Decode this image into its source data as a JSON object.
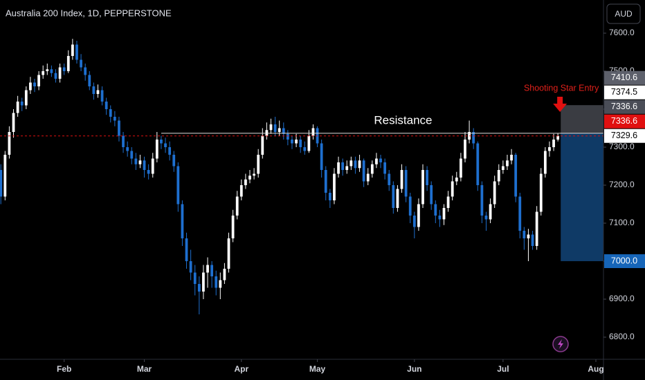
{
  "chart_data": {
    "type": "candlestick",
    "title": "Australia 200 Index, 1D, PEPPERSTONE",
    "currency": "AUD",
    "up_color": "#ffffff",
    "down_color": "#1e6fcf",
    "candles": [
      [
        7240,
        7255,
        7150,
        7170
      ],
      [
        7170,
        7290,
        7160,
        7280
      ],
      [
        7280,
        7355,
        7270,
        7340
      ],
      [
        7340,
        7400,
        7325,
        7390
      ],
      [
        7390,
        7435,
        7380,
        7420
      ],
      [
        7420,
        7430,
        7395,
        7410
      ],
      [
        7410,
        7460,
        7400,
        7450
      ],
      [
        7450,
        7485,
        7440,
        7470
      ],
      [
        7470,
        7480,
        7445,
        7460
      ],
      [
        7460,
        7500,
        7450,
        7490
      ],
      [
        7490,
        7515,
        7480,
        7500
      ],
      [
        7500,
        7520,
        7490,
        7505
      ],
      [
        7505,
        7515,
        7485,
        7495
      ],
      [
        7495,
        7505,
        7470,
        7480
      ],
      [
        7480,
        7520,
        7470,
        7510
      ],
      [
        7510,
        7520,
        7490,
        7500
      ],
      [
        7500,
        7555,
        7495,
        7540
      ],
      [
        7540,
        7585,
        7530,
        7570
      ],
      [
        7570,
        7580,
        7520,
        7530
      ],
      [
        7530,
        7545,
        7500,
        7510
      ],
      [
        7510,
        7520,
        7475,
        7490
      ],
      [
        7490,
        7500,
        7450,
        7460
      ],
      [
        7460,
        7470,
        7425,
        7440
      ],
      [
        7440,
        7465,
        7430,
        7450
      ],
      [
        7450,
        7460,
        7410,
        7420
      ],
      [
        7420,
        7430,
        7385,
        7400
      ],
      [
        7400,
        7410,
        7365,
        7380
      ],
      [
        7380,
        7395,
        7355,
        7370
      ],
      [
        7370,
        7380,
        7315,
        7330
      ],
      [
        7330,
        7340,
        7285,
        7300
      ],
      [
        7300,
        7315,
        7275,
        7290
      ],
      [
        7290,
        7300,
        7255,
        7270
      ],
      [
        7270,
        7285,
        7240,
        7255
      ],
      [
        7255,
        7280,
        7245,
        7265
      ],
      [
        7265,
        7275,
        7220,
        7240
      ],
      [
        7240,
        7255,
        7215,
        7230
      ],
      [
        7230,
        7285,
        7220,
        7270
      ],
      [
        7270,
        7340,
        7260,
        7320
      ],
      [
        7320,
        7330,
        7295,
        7310
      ],
      [
        7310,
        7325,
        7285,
        7300
      ],
      [
        7300,
        7315,
        7265,
        7280
      ],
      [
        7280,
        7290,
        7235,
        7250
      ],
      [
        7250,
        7260,
        7130,
        7150
      ],
      [
        7150,
        7160,
        7040,
        7060
      ],
      [
        7060,
        7075,
        6980,
        7000
      ],
      [
        7000,
        7030,
        6950,
        6970
      ],
      [
        6970,
        6990,
        6910,
        6940
      ],
      [
        6940,
        6960,
        6860,
        6920
      ],
      [
        6920,
        6990,
        6900,
        6970
      ],
      [
        6970,
        7010,
        6930,
        6990
      ],
      [
        6990,
        7000,
        6930,
        6960
      ],
      [
        6960,
        6975,
        6910,
        6930
      ],
      [
        6930,
        6970,
        6900,
        6950
      ],
      [
        6950,
        6995,
        6940,
        6980
      ],
      [
        6980,
        7075,
        6970,
        7060
      ],
      [
        7060,
        7135,
        7050,
        7120
      ],
      [
        7120,
        7185,
        7110,
        7170
      ],
      [
        7170,
        7215,
        7160,
        7200
      ],
      [
        7200,
        7230,
        7190,
        7215
      ],
      [
        7215,
        7240,
        7205,
        7225
      ],
      [
        7225,
        7245,
        7215,
        7230
      ],
      [
        7230,
        7295,
        7220,
        7280
      ],
      [
        7280,
        7350,
        7270,
        7330
      ],
      [
        7330,
        7365,
        7320,
        7345
      ],
      [
        7345,
        7375,
        7335,
        7360
      ],
      [
        7360,
        7380,
        7330,
        7340
      ],
      [
        7340,
        7370,
        7330,
        7350
      ],
      [
        7350,
        7365,
        7320,
        7335
      ],
      [
        7335,
        7345,
        7305,
        7320
      ],
      [
        7320,
        7330,
        7295,
        7310
      ],
      [
        7310,
        7335,
        7300,
        7320
      ],
      [
        7320,
        7330,
        7285,
        7300
      ],
      [
        7300,
        7315,
        7280,
        7290
      ],
      [
        7290,
        7345,
        7285,
        7330
      ],
      [
        7330,
        7360,
        7320,
        7350
      ],
      [
        7350,
        7355,
        7300,
        7310
      ],
      [
        7310,
        7320,
        7220,
        7240
      ],
      [
        7240,
        7250,
        7160,
        7180
      ],
      [
        7180,
        7190,
        7140,
        7160
      ],
      [
        7160,
        7245,
        7150,
        7230
      ],
      [
        7230,
        7275,
        7220,
        7260
      ],
      [
        7260,
        7270,
        7225,
        7240
      ],
      [
        7240,
        7265,
        7230,
        7250
      ],
      [
        7250,
        7275,
        7240,
        7265
      ],
      [
        7265,
        7275,
        7230,
        7245
      ],
      [
        7245,
        7280,
        7235,
        7265
      ],
      [
        7265,
        7270,
        7195,
        7210
      ],
      [
        7210,
        7245,
        7200,
        7230
      ],
      [
        7230,
        7265,
        7220,
        7255
      ],
      [
        7255,
        7285,
        7245,
        7270
      ],
      [
        7270,
        7280,
        7245,
        7260
      ],
      [
        7260,
        7270,
        7215,
        7230
      ],
      [
        7230,
        7240,
        7185,
        7200
      ],
      [
        7200,
        7210,
        7125,
        7140
      ],
      [
        7140,
        7200,
        7130,
        7190
      ],
      [
        7190,
        7255,
        7180,
        7240
      ],
      [
        7240,
        7250,
        7155,
        7170
      ],
      [
        7170,
        7180,
        7100,
        7120
      ],
      [
        7120,
        7130,
        7060,
        7090
      ],
      [
        7090,
        7165,
        7080,
        7150
      ],
      [
        7150,
        7255,
        7140,
        7240
      ],
      [
        7240,
        7250,
        7185,
        7200
      ],
      [
        7200,
        7210,
        7135,
        7150
      ],
      [
        7150,
        7160,
        7100,
        7120
      ],
      [
        7120,
        7135,
        7090,
        7110
      ],
      [
        7110,
        7150,
        7095,
        7140
      ],
      [
        7140,
        7185,
        7130,
        7170
      ],
      [
        7170,
        7225,
        7160,
        7210
      ],
      [
        7210,
        7235,
        7200,
        7220
      ],
      [
        7220,
        7285,
        7210,
        7270
      ],
      [
        7270,
        7340,
        7260,
        7320
      ],
      [
        7320,
        7370,
        7310,
        7340
      ],
      [
        7340,
        7350,
        7295,
        7310
      ],
      [
        7310,
        7315,
        7185,
        7200
      ],
      [
        7200,
        7210,
        7100,
        7120
      ],
      [
        7120,
        7130,
        7080,
        7110
      ],
      [
        7110,
        7165,
        7100,
        7150
      ],
      [
        7150,
        7225,
        7140,
        7210
      ],
      [
        7210,
        7255,
        7200,
        7240
      ],
      [
        7240,
        7265,
        7230,
        7250
      ],
      [
        7250,
        7280,
        7240,
        7265
      ],
      [
        7265,
        7295,
        7255,
        7280
      ],
      [
        7280,
        7285,
        7155,
        7170
      ],
      [
        7170,
        7180,
        7060,
        7080
      ],
      [
        7080,
        7090,
        7030,
        7060
      ],
      [
        7060,
        7085,
        7000,
        7070
      ],
      [
        7070,
        7080,
        7030,
        7040
      ],
      [
        7040,
        7145,
        7030,
        7130
      ],
      [
        7130,
        7245,
        7120,
        7230
      ],
      [
        7230,
        7300,
        7220,
        7290
      ],
      [
        7290,
        7315,
        7275,
        7300
      ],
      [
        7300,
        7335,
        7290,
        7320
      ],
      [
        7320,
        7336.6,
        7315,
        7329.6
      ]
    ],
    "xlim": [
      -0.2,
      142.8
    ],
    "xticks": [
      {
        "value": 15,
        "label": "Feb"
      },
      {
        "value": 34,
        "label": "Mar"
      },
      {
        "value": 57,
        "label": "Apr"
      },
      {
        "value": 75,
        "label": "May"
      },
      {
        "value": 98,
        "label": "Jun"
      },
      {
        "value": 119,
        "label": "Jul"
      },
      {
        "value": 141,
        "label": "Aug"
      }
    ],
    "ylim": [
      6741.8,
      7687.3
    ],
    "yticks": [
      {
        "value": 6800,
        "label": "6800.0"
      },
      {
        "value": 6900,
        "label": "6900.0"
      },
      {
        "value": 7000,
        "label": "7000.0"
      },
      {
        "value": 7100,
        "label": "7100.0"
      },
      {
        "value": 7200,
        "label": "7200.0"
      },
      {
        "value": 7300,
        "label": "7300.0"
      },
      {
        "value": 7400,
        "label": "7400.0"
      },
      {
        "value": 7500,
        "label": "7500.0"
      },
      {
        "value": 7600,
        "label": "7600.0"
      }
    ],
    "resistance": {
      "label": "Resistance",
      "value": 7336.6,
      "start": 38
    },
    "last_price": 7329.6,
    "position": {
      "start": 133,
      "stop": 7410.6,
      "entry": 7336.6,
      "target": 7000
    },
    "signal": {
      "label": "Shooting Star Entry",
      "at": 132
    },
    "price_labels": [
      {
        "value": 7410.6,
        "label": "7410.6",
        "color": "#5d606b"
      },
      {
        "value": 7374.5,
        "label": "7374.5",
        "color": "#ffffff"
      },
      {
        "value": 7336.6,
        "label": "7336.6",
        "color": "#e01010"
      },
      {
        "value": 7336.6,
        "label": "7336.6",
        "color": "#4a4d57"
      },
      {
        "value": 7329.6,
        "label": "7329.6",
        "color": "#ffffff"
      },
      {
        "value": 7000,
        "label": "7000.0",
        "color": "#1665b8"
      }
    ]
  }
}
